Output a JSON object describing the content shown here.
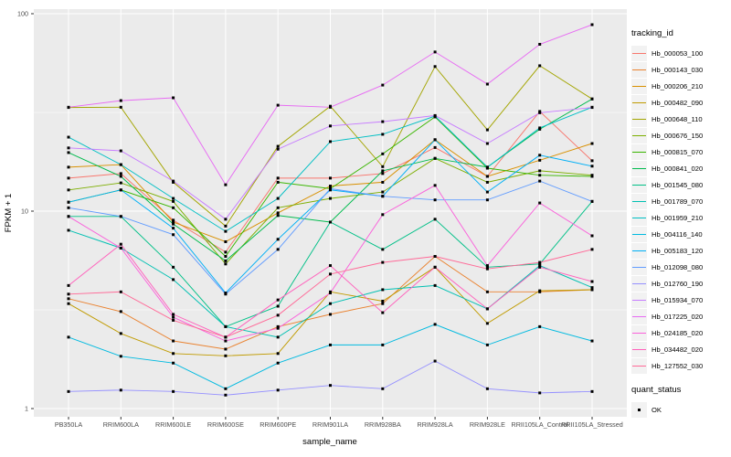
{
  "chart_data": {
    "type": "line",
    "xlabel": "sample_name",
    "ylabel": "FPKM + 1",
    "yscale": "log",
    "ylim": [
      1,
      100
    ],
    "y_major_ticks": [
      "1",
      "10",
      "100"
    ],
    "y_minor_breaks": [
      3.1623,
      31.623
    ],
    "grid": "on",
    "panel_background": "#EBEBEB",
    "gridline_color": "#FFFFFF",
    "point_shape": "filled-square",
    "point_color": "#000000",
    "legend": {
      "title": "tracking_id",
      "position": "right"
    },
    "quant_legend": {
      "title": "quant_status",
      "items": [
        "OK"
      ]
    },
    "categories": [
      "PB350LA",
      "RRIM600LA",
      "RRIM600LE",
      "RRIM600SE",
      "RRIM600PE",
      "RRIM901LA",
      "RRIM928BA",
      "RRIM928LA",
      "RRIM928LE",
      "RRII105LA_Control",
      "RRII105LA_Stressed"
    ],
    "series": [
      {
        "name": "Hb_000053_100",
        "color": "#F8766D",
        "values": [
          14.7,
          15.5,
          9.0,
          6.2,
          14.7,
          14.7,
          15.5,
          21.0,
          15.0,
          32.0,
          18.0
        ]
      },
      {
        "name": "Hb_000143_030",
        "color": "#EA8331",
        "values": [
          3.6,
          3.1,
          2.2,
          2.0,
          2.6,
          3.0,
          3.4,
          5.9,
          3.9,
          3.9,
          4.0
        ]
      },
      {
        "name": "Hb_000206_210",
        "color": "#D89000",
        "values": [
          16.7,
          17.2,
          8.8,
          7.0,
          9.8,
          13.4,
          14.0,
          23.0,
          15.0,
          18.1,
          22.0
        ]
      },
      {
        "name": "Hb_000482_090",
        "color": "#C09B00",
        "values": [
          3.4,
          2.4,
          1.9,
          1.85,
          1.9,
          3.9,
          3.5,
          5.2,
          2.7,
          3.95,
          4.0
        ]
      },
      {
        "name": "Hb_000648_110",
        "color": "#A3A500",
        "values": [
          33.5,
          33.6,
          14.0,
          8.4,
          21.3,
          34.0,
          16.8,
          54.0,
          25.8,
          54.5,
          37.0
        ]
      },
      {
        "name": "Hb_000676_150",
        "color": "#7CAE00",
        "values": [
          12.8,
          13.9,
          11.2,
          5.4,
          10.4,
          11.6,
          12.5,
          18.5,
          14.0,
          16.0,
          15.2
        ]
      },
      {
        "name": "Hb_000815_070",
        "color": "#39B600",
        "values": [
          11.1,
          12.8,
          10.4,
          5.9,
          14.0,
          13.0,
          19.5,
          30.0,
          16.5,
          15.2,
          15.0
        ]
      },
      {
        "name": "Hb_000841_020",
        "color": "#00BB4E",
        "values": [
          19.8,
          15.0,
          8.6,
          5.6,
          9.5,
          8.8,
          16.0,
          18.5,
          16.7,
          26.0,
          37.0
        ]
      },
      {
        "name": "Hb_001545_080",
        "color": "#00C087",
        "values": [
          9.4,
          9.4,
          5.2,
          2.6,
          3.3,
          8.8,
          6.4,
          9.1,
          5.2,
          5.4,
          11.2
        ]
      },
      {
        "name": "Hb_001789_070",
        "color": "#00C0B2",
        "values": [
          8.0,
          6.5,
          4.5,
          2.6,
          2.3,
          3.4,
          4.0,
          4.2,
          3.2,
          5.3,
          4.1
        ]
      },
      {
        "name": "Hb_001959_210",
        "color": "#00BFC4",
        "values": [
          23.7,
          17.2,
          11.6,
          7.9,
          11.6,
          22.5,
          24.5,
          30.3,
          16.7,
          26.4,
          33.6
        ]
      },
      {
        "name": "Hb_004116_140",
        "color": "#00BAE0",
        "values": [
          2.3,
          1.84,
          1.7,
          1.26,
          1.7,
          2.1,
          2.1,
          2.67,
          2.1,
          2.6,
          2.2
        ]
      },
      {
        "name": "Hb_005183_120",
        "color": "#00B0F6",
        "values": [
          11.1,
          12.8,
          8.2,
          3.85,
          7.2,
          12.8,
          11.9,
          23.0,
          12.5,
          19.2,
          16.9
        ]
      },
      {
        "name": "Hb_012098_080",
        "color": "#619CFF",
        "values": [
          10.4,
          9.4,
          7.6,
          3.8,
          6.4,
          13.0,
          11.9,
          11.4,
          11.4,
          14.2,
          11.2
        ]
      },
      {
        "name": "Hb_012760_190",
        "color": "#9590FF",
        "values": [
          1.22,
          1.24,
          1.22,
          1.17,
          1.24,
          1.31,
          1.26,
          1.74,
          1.26,
          1.2,
          1.22
        ]
      },
      {
        "name": "Hb_015934_070",
        "color": "#C77CFF",
        "values": [
          20.9,
          20.2,
          14.2,
          9.1,
          20.6,
          27.0,
          28.4,
          30.5,
          22.0,
          31.5,
          33.5
        ]
      },
      {
        "name": "Hb_017225_020",
        "color": "#E76BF3",
        "values": [
          33.6,
          36.3,
          37.5,
          13.6,
          34.4,
          33.6,
          43.5,
          64.0,
          44.0,
          70.0,
          88.0
        ]
      },
      {
        "name": "Hb_024185_020",
        "color": "#FA62DB",
        "values": [
          9.4,
          6.5,
          2.9,
          2.2,
          2.55,
          3.85,
          9.6,
          13.5,
          5.3,
          11.0,
          7.5
        ]
      },
      {
        "name": "Hb_034482_020",
        "color": "#FF62BC",
        "values": [
          4.2,
          6.8,
          3.0,
          2.3,
          3.55,
          5.3,
          3.06,
          5.2,
          3.2,
          5.2,
          4.4
        ]
      },
      {
        "name": "Hb_127552_030",
        "color": "#FF6A98",
        "values": [
          3.8,
          3.9,
          2.8,
          2.3,
          2.97,
          4.8,
          5.5,
          5.9,
          5.1,
          5.5,
          6.4
        ]
      }
    ]
  }
}
